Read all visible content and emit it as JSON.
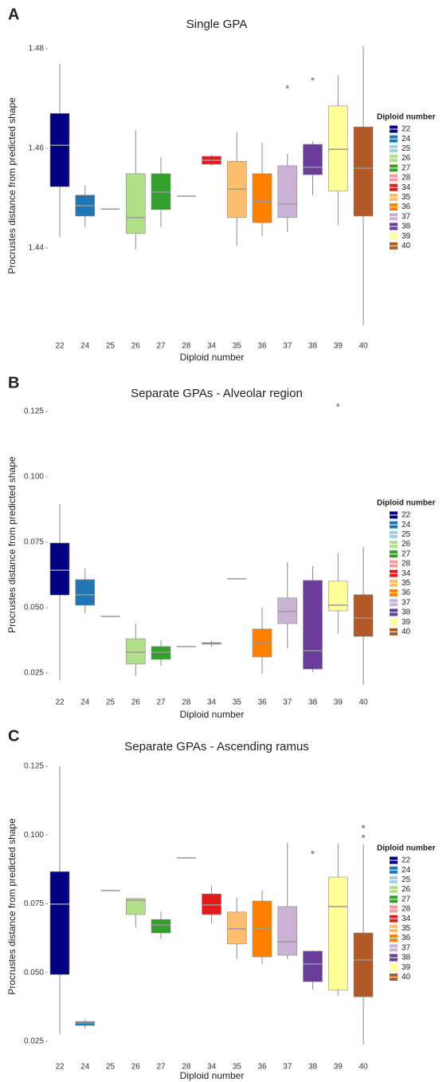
{
  "chart_data": [
    {
      "type": "box",
      "panel": "A",
      "title": "Single GPA",
      "xlabel": "Diploid number",
      "ylabel": "Procrustes distance from predicted shape",
      "legend_title": "Diploid number",
      "categories": [
        "22",
        "24",
        "25",
        "26",
        "27",
        "28",
        "34",
        "35",
        "36",
        "37",
        "38",
        "39",
        "40"
      ],
      "colors": [
        "#000080",
        "#1f78b4",
        "#a6cee3",
        "#b2df8a",
        "#33a02c",
        "#fb9a99",
        "#e31a1c",
        "#fdbf6f",
        "#ff7f00",
        "#cab2d6",
        "#6a3d9a",
        "#ffff99",
        "#b15928"
      ],
      "ylim": [
        1.424,
        1.481
      ],
      "yticks": [
        1.44,
        1.46,
        1.48
      ],
      "boxes": [
        {
          "whislo": 1.4422,
          "q1": 1.4523,
          "med": 1.4606,
          "q3": 1.467,
          "whishi": 1.477
        },
        {
          "whislo": 1.4442,
          "q1": 1.4464,
          "med": 1.4485,
          "q3": 1.4506,
          "whishi": 1.4526
        },
        {
          "med": 1.4478
        },
        {
          "whislo": 1.4397,
          "q1": 1.4429,
          "med": 1.4461,
          "q3": 1.4549,
          "whishi": 1.4637
        },
        {
          "whislo": 1.4442,
          "q1": 1.4477,
          "med": 1.4512,
          "q3": 1.4549,
          "whishi": 1.4582
        },
        {
          "med": 1.4504
        },
        {
          "whislo": 1.4565,
          "q1": 1.4568,
          "med": 1.4576,
          "q3": 1.4584,
          "whishi": 1.4587
        },
        {
          "whislo": 1.4405,
          "q1": 1.4461,
          "med": 1.4518,
          "q3": 1.4574,
          "whishi": 1.4632
        },
        {
          "whislo": 1.4424,
          "q1": 1.4451,
          "med": 1.4494,
          "q3": 1.4549,
          "whishi": 1.4611
        },
        {
          "whislo": 1.4432,
          "q1": 1.4461,
          "med": 1.4488,
          "q3": 1.4565,
          "whishi": 1.4589,
          "fliers": [
            1.4723
          ]
        },
        {
          "whislo": 1.4506,
          "q1": 1.4547,
          "med": 1.4562,
          "q3": 1.4608,
          "whishi": 1.4614,
          "fliers": [
            1.4739
          ]
        },
        {
          "whislo": 1.4446,
          "q1": 1.4514,
          "med": 1.4598,
          "q3": 1.4685,
          "whishi": 1.4747
        },
        {
          "whislo": 1.4245,
          "q1": 1.4464,
          "med": 1.456,
          "q3": 1.4643,
          "whishi": 1.4805
        }
      ]
    },
    {
      "type": "box",
      "panel": "B",
      "title": "Separate GPAs - Alveolar region",
      "xlabel": "Diploid number",
      "ylabel": "Procrustes distance from predicted shape",
      "legend_title": "Diploid number",
      "categories": [
        "22",
        "24",
        "25",
        "26",
        "27",
        "28",
        "34",
        "35",
        "36",
        "37",
        "38",
        "39",
        "40"
      ],
      "colors": [
        "#000080",
        "#1f78b4",
        "#a6cee3",
        "#b2df8a",
        "#33a02c",
        "#fb9a99",
        "#e31a1c",
        "#fdbf6f",
        "#ff7f00",
        "#cab2d6",
        "#6a3d9a",
        "#ffff99",
        "#b15928"
      ],
      "ylim": [
        0.02,
        0.128
      ],
      "yticks": [
        0.025,
        {
          "value": 0.05,
          "label": "0.050"
        },
        0.075,
        {
          "value": 0.1,
          "label": "0.100"
        },
        0.125
      ],
      "boxes": [
        {
          "whislo": 0.0223,
          "q1": 0.0548,
          "med": 0.0643,
          "q3": 0.0747,
          "whishi": 0.0896
        },
        {
          "whislo": 0.0479,
          "q1": 0.0509,
          "med": 0.0549,
          "q3": 0.0607,
          "whishi": 0.065
        },
        {
          "med": 0.0466
        },
        {
          "whislo": 0.0238,
          "q1": 0.0284,
          "med": 0.0329,
          "q3": 0.0381,
          "whishi": 0.0439
        },
        {
          "whislo": 0.0277,
          "q1": 0.0302,
          "med": 0.0329,
          "q3": 0.0351,
          "whishi": 0.0375
        },
        {
          "med": 0.0351
        },
        {
          "whislo": 0.0351,
          "q1": 0.036,
          "med": 0.0363,
          "q3": 0.0366,
          "whishi": 0.0372
        },
        {
          "med": 0.061
        },
        {
          "whislo": 0.0247,
          "q1": 0.0311,
          "med": 0.0366,
          "q3": 0.0418,
          "whishi": 0.05
        },
        {
          "whislo": 0.0345,
          "q1": 0.0439,
          "med": 0.0485,
          "q3": 0.0537,
          "whishi": 0.0674
        },
        {
          "whislo": 0.0253,
          "q1": 0.0265,
          "med": 0.0335,
          "q3": 0.0604,
          "whishi": 0.0659
        },
        {
          "whislo": 0.04,
          "q1": 0.0488,
          "med": 0.0509,
          "q3": 0.0601,
          "whishi": 0.071,
          "fliers": [
            0.1274
          ]
        },
        {
          "whislo": 0.0204,
          "q1": 0.039,
          "med": 0.046,
          "q3": 0.0549,
          "whishi": 0.0732
        }
      ]
    },
    {
      "type": "box",
      "panel": "C",
      "title": "Separate GPAs - Ascending ramus",
      "xlabel": "Diploid number",
      "ylabel": "Procrustes distance from predicted shape",
      "legend_title": "Diploid number",
      "categories": [
        "22",
        "24",
        "25",
        "26",
        "27",
        "28",
        "34",
        "35",
        "36",
        "37",
        "38",
        "39",
        "40"
      ],
      "colors": [
        "#000080",
        "#1f78b4",
        "#a6cee3",
        "#b2df8a",
        "#33a02c",
        "#fb9a99",
        "#e31a1c",
        "#fdbf6f",
        "#ff7f00",
        "#cab2d6",
        "#6a3d9a",
        "#ffff99",
        "#b15928"
      ],
      "ylim": [
        0.022,
        0.126
      ],
      "yticks": [
        0.025,
        {
          "value": 0.05,
          "label": "0.050"
        },
        0.075,
        {
          "value": 0.1,
          "label": "0.100"
        },
        0.125
      ],
      "boxes": [
        {
          "whislo": 0.0276,
          "q1": 0.0493,
          "med": 0.0749,
          "q3": 0.0867,
          "whishi": 0.125
        },
        {
          "whislo": 0.0296,
          "q1": 0.0308,
          "med": 0.0317,
          "q3": 0.0322,
          "whishi": 0.0331
        },
        {
          "med": 0.0798
        },
        {
          "whislo": 0.0664,
          "q1": 0.0711,
          "med": 0.0763,
          "q3": 0.0769,
          "whishi": 0.0772
        },
        {
          "whislo": 0.0621,
          "q1": 0.0644,
          "med": 0.0673,
          "q3": 0.0693,
          "whishi": 0.0722
        },
        {
          "med": 0.0917
        },
        {
          "whislo": 0.0679,
          "q1": 0.0711,
          "med": 0.0746,
          "q3": 0.0786,
          "whishi": 0.0815
        },
        {
          "whislo": 0.0549,
          "q1": 0.0604,
          "med": 0.0659,
          "q3": 0.072,
          "whishi": 0.0772
        },
        {
          "whislo": 0.0531,
          "q1": 0.0557,
          "med": 0.0659,
          "q3": 0.076,
          "whishi": 0.0798
        },
        {
          "whislo": 0.0549,
          "q1": 0.0563,
          "med": 0.0612,
          "q3": 0.074,
          "whishi": 0.0972
        },
        {
          "whislo": 0.0438,
          "q1": 0.0467,
          "med": 0.0531,
          "q3": 0.0578,
          "whishi": 0.058,
          "fliers": [
            0.0937
          ]
        },
        {
          "whislo": 0.0415,
          "q1": 0.0436,
          "med": 0.074,
          "q3": 0.0847,
          "whishi": 0.0969
        },
        {
          "whislo": 0.0238,
          "q1": 0.0412,
          "med": 0.0546,
          "q3": 0.0644,
          "whishi": 0.0966,
          "fliers": [
            0.103,
            0.0995
          ]
        }
      ]
    }
  ]
}
